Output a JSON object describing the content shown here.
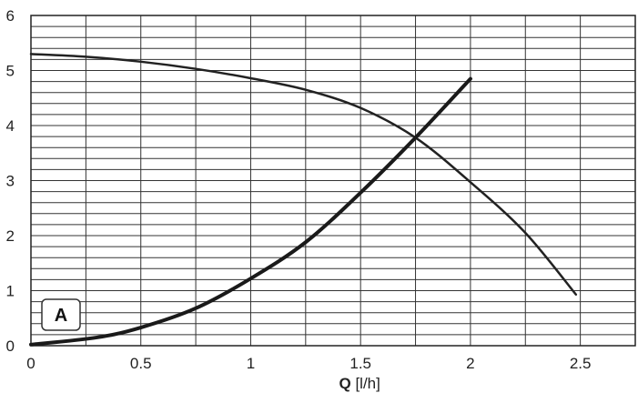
{
  "chart_data": {
    "type": "line",
    "title": "",
    "xlabel_bold": "Q",
    "xlabel_rest": " [l/h]",
    "ylabel": "",
    "xlim": [
      0,
      2.75
    ],
    "ylim": [
      0,
      6
    ],
    "x_ticks": [
      0,
      0.5,
      1,
      1.5,
      2,
      2.5
    ],
    "x_tick_labels": [
      "0",
      "0.5",
      "1",
      "1.5",
      "2",
      "2.5"
    ],
    "y_ticks": [
      0,
      1,
      2,
      3,
      4,
      5,
      6
    ],
    "y_tick_labels": [
      "0",
      "1",
      "2",
      "3",
      "4",
      "5",
      "6"
    ],
    "grid": {
      "vertical_step": 0.25,
      "horizontal_step": 0.2
    },
    "panel_label": "A",
    "series": [
      {
        "points": [
          [
            0,
            5.3
          ],
          [
            0.25,
            5.25
          ],
          [
            0.5,
            5.16
          ],
          [
            0.75,
            5.03
          ],
          [
            1.0,
            4.86
          ],
          [
            1.25,
            4.65
          ],
          [
            1.5,
            4.32
          ],
          [
            1.75,
            3.78
          ],
          [
            2.0,
            2.97
          ],
          [
            2.25,
            2.05
          ],
          [
            2.48,
            0.93
          ]
        ],
        "line_width": 2.5,
        "color": "#222222"
      },
      {
        "points": [
          [
            0,
            0.02
          ],
          [
            0.3,
            0.15
          ],
          [
            0.5,
            0.33
          ],
          [
            0.75,
            0.68
          ],
          [
            1.0,
            1.22
          ],
          [
            1.25,
            1.88
          ],
          [
            1.5,
            2.78
          ],
          [
            1.75,
            3.78
          ],
          [
            2.0,
            4.85
          ]
        ],
        "line_width": 4,
        "color": "#1a1a1a"
      }
    ]
  }
}
